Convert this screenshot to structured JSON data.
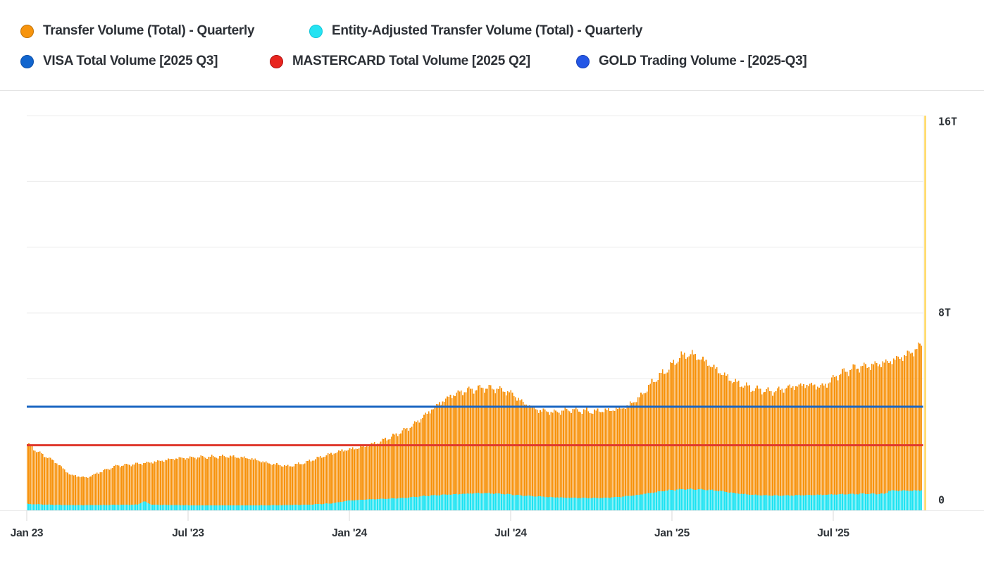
{
  "legend": {
    "rows": [
      [
        {
          "label": "Transfer Volume (Total) - Quarterly",
          "color": "#f7940d",
          "border": "#c07207"
        },
        {
          "label": "Entity-Adjusted Transfer Volume (Total) - Quarterly",
          "color": "#25e3f2",
          "border": "#0fc6d8"
        }
      ],
      [
        {
          "label": "VISA Total Volume [2025 Q3]",
          "color": "#1165ce",
          "border": "#0d4fa8"
        },
        {
          "label": "MASTERCARD Total Volume [2025 Q2]",
          "color": "#e8251f",
          "border": "#b01111"
        },
        {
          "label": "GOLD Trading Volume - [2025-Q3]",
          "color": "#2457e6",
          "border": "#1640b8"
        }
      ]
    ]
  },
  "chart_data": {
    "type": "area",
    "title": "",
    "unit": "trillions USD",
    "ylim": [
      0,
      16
    ],
    "grid_divisions": 6,
    "legend_position": "top",
    "y_ticks": [
      {
        "label": "16T",
        "value": 16
      },
      {
        "label": "8T",
        "value": 8
      },
      {
        "label": "0",
        "value": 0
      }
    ],
    "x_ticks": [
      {
        "label": "Jan 23",
        "month": 0
      },
      {
        "label": "Jul '23",
        "month": 6
      },
      {
        "label": "Jan '24",
        "month": 12
      },
      {
        "label": "Jul '24",
        "month": 18
      },
      {
        "label": "Jan '25",
        "month": 24
      },
      {
        "label": "Jul '25",
        "month": 30
      }
    ],
    "x_range_months": [
      0,
      33.35
    ],
    "series": [
      {
        "name": "Transfer Volume (Total) - Quarterly",
        "type": "bar-area",
        "color": "#f7920b",
        "points": [
          [
            0,
            2.69
          ],
          [
            0.4,
            2.36
          ],
          [
            1,
            2.0
          ],
          [
            1.6,
            1.44
          ],
          [
            2.2,
            1.32
          ],
          [
            2.7,
            1.55
          ],
          [
            3.3,
            1.8
          ],
          [
            4.5,
            1.93
          ],
          [
            5.5,
            2.1
          ],
          [
            6.5,
            2.16
          ],
          [
            7.5,
            2.19
          ],
          [
            8.3,
            2.1
          ],
          [
            9,
            1.9
          ],
          [
            9.7,
            1.78
          ],
          [
            10.3,
            1.93
          ],
          [
            11,
            2.19
          ],
          [
            11.7,
            2.42
          ],
          [
            12.3,
            2.53
          ],
          [
            13,
            2.73
          ],
          [
            13.7,
            3.05
          ],
          [
            14.3,
            3.42
          ],
          [
            14.8,
            3.86
          ],
          [
            15.3,
            4.32
          ],
          [
            15.8,
            4.66
          ],
          [
            16.3,
            4.86
          ],
          [
            17,
            4.97
          ],
          [
            17.5,
            4.92
          ],
          [
            18,
            4.75
          ],
          [
            18.5,
            4.32
          ],
          [
            19,
            4.06
          ],
          [
            19.6,
            3.97
          ],
          [
            20.2,
            4.09
          ],
          [
            21,
            4.0
          ],
          [
            21.7,
            4.06
          ],
          [
            22.3,
            4.2
          ],
          [
            22.8,
            4.6
          ],
          [
            23.3,
            5.24
          ],
          [
            23.8,
            5.7
          ],
          [
            24.3,
            6.24
          ],
          [
            24.7,
            6.34
          ],
          [
            25.2,
            6.04
          ],
          [
            25.8,
            5.58
          ],
          [
            26.3,
            5.21
          ],
          [
            27,
            4.92
          ],
          [
            27.7,
            4.81
          ],
          [
            28.3,
            4.98
          ],
          [
            29,
            5.09
          ],
          [
            29.6,
            5.01
          ],
          [
            30.2,
            5.53
          ],
          [
            30.8,
            5.78
          ],
          [
            31.4,
            5.87
          ],
          [
            32,
            6.01
          ],
          [
            32.6,
            6.24
          ],
          [
            33,
            6.47
          ],
          [
            33.35,
            6.8
          ]
        ]
      },
      {
        "name": "Entity-Adjusted Transfer Volume (Total) - Quarterly",
        "type": "bar-area",
        "color": "#1ee3f2",
        "points": [
          [
            0,
            0.26
          ],
          [
            1,
            0.22
          ],
          [
            2,
            0.21
          ],
          [
            3,
            0.22
          ],
          [
            4.1,
            0.23
          ],
          [
            4.35,
            0.37
          ],
          [
            4.6,
            0.23
          ],
          [
            5.5,
            0.21
          ],
          [
            6.5,
            0.2
          ],
          [
            7.5,
            0.2
          ],
          [
            8.5,
            0.2
          ],
          [
            9.5,
            0.21
          ],
          [
            10.5,
            0.23
          ],
          [
            11.3,
            0.28
          ],
          [
            12,
            0.4
          ],
          [
            12.6,
            0.44
          ],
          [
            13.3,
            0.47
          ],
          [
            14,
            0.5
          ],
          [
            15,
            0.6
          ],
          [
            16,
            0.66
          ],
          [
            17,
            0.7
          ],
          [
            17.8,
            0.66
          ],
          [
            18.4,
            0.6
          ],
          [
            19,
            0.56
          ],
          [
            19.8,
            0.52
          ],
          [
            20.6,
            0.5
          ],
          [
            21.4,
            0.5
          ],
          [
            22,
            0.54
          ],
          [
            22.7,
            0.62
          ],
          [
            23.4,
            0.74
          ],
          [
            23.9,
            0.82
          ],
          [
            24.5,
            0.86
          ],
          [
            25.2,
            0.84
          ],
          [
            25.8,
            0.78
          ],
          [
            26.3,
            0.7
          ],
          [
            26.8,
            0.64
          ],
          [
            27.5,
            0.6
          ],
          [
            28.3,
            0.6
          ],
          [
            29,
            0.62
          ],
          [
            30,
            0.64
          ],
          [
            31,
            0.67
          ],
          [
            31.9,
            0.67
          ],
          [
            32.05,
            0.79
          ],
          [
            33,
            0.8
          ],
          [
            33.35,
            0.82
          ]
        ]
      },
      {
        "name": "VISA Total Volume [2025 Q3]",
        "type": "hline",
        "color": "#1b66c2",
        "value": 4.2
      },
      {
        "name": "MASTERCARD Total Volume [2025 Q2]",
        "type": "hline",
        "color": "#e03a2f",
        "value": 2.64
      },
      {
        "name": "GOLD Trading Volume - [2025-Q3]",
        "type": "vline",
        "color": "#ffd75e",
        "month": 33.42
      }
    ]
  }
}
